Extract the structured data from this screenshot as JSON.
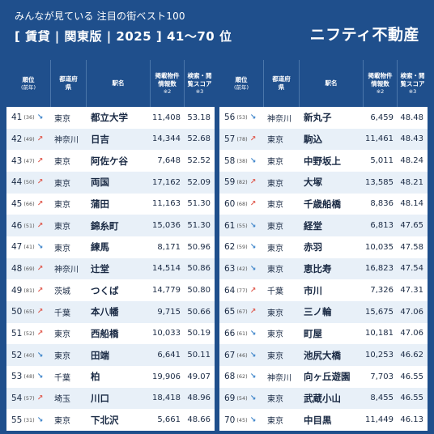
{
  "header": {
    "subtitle": "みんなが見ている 注目の街ベスト100",
    "title": "[ 賃貸 | 関東版 | 2025 ]   41〜70 位",
    "brand": "ニフティ不動産"
  },
  "columns": {
    "rank": "順位",
    "rank_sub": "(前年)",
    "pref": "都道府県",
    "station": "駅名",
    "count": "掲載物件情報数",
    "count_note": "※2",
    "score": "検索・閲覧スコア",
    "score_note": "※3"
  },
  "left_rows": [
    {
      "rank": "41",
      "prev": "(36)",
      "trend": "down",
      "pref": "東京",
      "station": "都立大学",
      "count": "11,408",
      "score": "53.18"
    },
    {
      "rank": "42",
      "prev": "(49)",
      "trend": "up",
      "pref": "神奈川",
      "station": "日吉",
      "count": "14,344",
      "score": "52.68"
    },
    {
      "rank": "43",
      "prev": "(47)",
      "trend": "up",
      "pref": "東京",
      "station": "阿佐ケ谷",
      "count": "7,648",
      "score": "52.52"
    },
    {
      "rank": "44",
      "prev": "(50)",
      "trend": "up",
      "pref": "東京",
      "station": "両国",
      "count": "17,162",
      "score": "52.09"
    },
    {
      "rank": "45",
      "prev": "(66)",
      "trend": "up",
      "pref": "東京",
      "station": "蒲田",
      "count": "11,163",
      "score": "51.30"
    },
    {
      "rank": "46",
      "prev": "(51)",
      "trend": "up",
      "pref": "東京",
      "station": "錦糸町",
      "count": "15,036",
      "score": "51.30"
    },
    {
      "rank": "47",
      "prev": "(41)",
      "trend": "down",
      "pref": "東京",
      "station": "練馬",
      "count": "8,171",
      "score": "50.96"
    },
    {
      "rank": "48",
      "prev": "(69)",
      "trend": "up",
      "pref": "神奈川",
      "station": "辻堂",
      "count": "14,514",
      "score": "50.86"
    },
    {
      "rank": "49",
      "prev": "(81)",
      "trend": "up",
      "pref": "茨城",
      "station": "つくば",
      "count": "14,779",
      "score": "50.80"
    },
    {
      "rank": "50",
      "prev": "(65)",
      "trend": "up",
      "pref": "千葉",
      "station": "本八幡",
      "count": "9,715",
      "score": "50.66"
    },
    {
      "rank": "51",
      "prev": "(52)",
      "trend": "up",
      "pref": "東京",
      "station": "西船橋",
      "count": "10,033",
      "score": "50.19"
    },
    {
      "rank": "52",
      "prev": "(40)",
      "trend": "down",
      "pref": "東京",
      "station": "田端",
      "count": "6,641",
      "score": "50.11"
    },
    {
      "rank": "53",
      "prev": "(48)",
      "trend": "down",
      "pref": "千葉",
      "station": "柏",
      "count": "19,906",
      "score": "49.07"
    },
    {
      "rank": "54",
      "prev": "(57)",
      "trend": "up",
      "pref": "埼玉",
      "station": "川口",
      "count": "18,418",
      "score": "48.96"
    },
    {
      "rank": "55",
      "prev": "(31)",
      "trend": "down",
      "pref": "東京",
      "station": "下北沢",
      "count": "5,661",
      "score": "48.66"
    }
  ],
  "right_rows": [
    {
      "rank": "56",
      "prev": "(53)",
      "trend": "down",
      "pref": "神奈川",
      "station": "新丸子",
      "count": "6,459",
      "score": "48.48"
    },
    {
      "rank": "57",
      "prev": "(78)",
      "trend": "up",
      "pref": "東京",
      "station": "駒込",
      "count": "11,461",
      "score": "48.43"
    },
    {
      "rank": "58",
      "prev": "(38)",
      "trend": "down",
      "pref": "東京",
      "station": "中野坂上",
      "count": "5,011",
      "score": "48.24"
    },
    {
      "rank": "59",
      "prev": "(82)",
      "trend": "up",
      "pref": "東京",
      "station": "大塚",
      "count": "13,585",
      "score": "48.21"
    },
    {
      "rank": "60",
      "prev": "(68)",
      "trend": "up",
      "pref": "東京",
      "station": "千歳船橋",
      "count": "8,836",
      "score": "48.14"
    },
    {
      "rank": "61",
      "prev": "(55)",
      "trend": "down",
      "pref": "東京",
      "station": "経堂",
      "count": "6,813",
      "score": "47.65"
    },
    {
      "rank": "62",
      "prev": "(59)",
      "trend": "down",
      "pref": "東京",
      "station": "赤羽",
      "count": "10,035",
      "score": "47.58"
    },
    {
      "rank": "63",
      "prev": "(42)",
      "trend": "down",
      "pref": "東京",
      "station": "恵比寿",
      "count": "16,823",
      "score": "47.54"
    },
    {
      "rank": "64",
      "prev": "(77)",
      "trend": "up",
      "pref": "千葉",
      "station": "市川",
      "count": "7,326",
      "score": "47.31"
    },
    {
      "rank": "65",
      "prev": "(67)",
      "trend": "up",
      "pref": "東京",
      "station": "三ノ輪",
      "count": "15,675",
      "score": "47.06"
    },
    {
      "rank": "66",
      "prev": "(61)",
      "trend": "down",
      "pref": "東京",
      "station": "町屋",
      "count": "10,181",
      "score": "47.06"
    },
    {
      "rank": "67",
      "prev": "(46)",
      "trend": "down",
      "pref": "東京",
      "station": "池尻大橋",
      "count": "10,253",
      "score": "46.62"
    },
    {
      "rank": "68",
      "prev": "(62)",
      "trend": "down",
      "pref": "神奈川",
      "station": "向ヶ丘遊園",
      "count": "7,703",
      "score": "46.55"
    },
    {
      "rank": "69",
      "prev": "(54)",
      "trend": "down",
      "pref": "東京",
      "station": "武蔵小山",
      "count": "8,455",
      "score": "46.55"
    },
    {
      "rank": "70",
      "prev": "(45)",
      "trend": "down",
      "pref": "東京",
      "station": "中目黒",
      "count": "11,449",
      "score": "46.13"
    }
  ]
}
